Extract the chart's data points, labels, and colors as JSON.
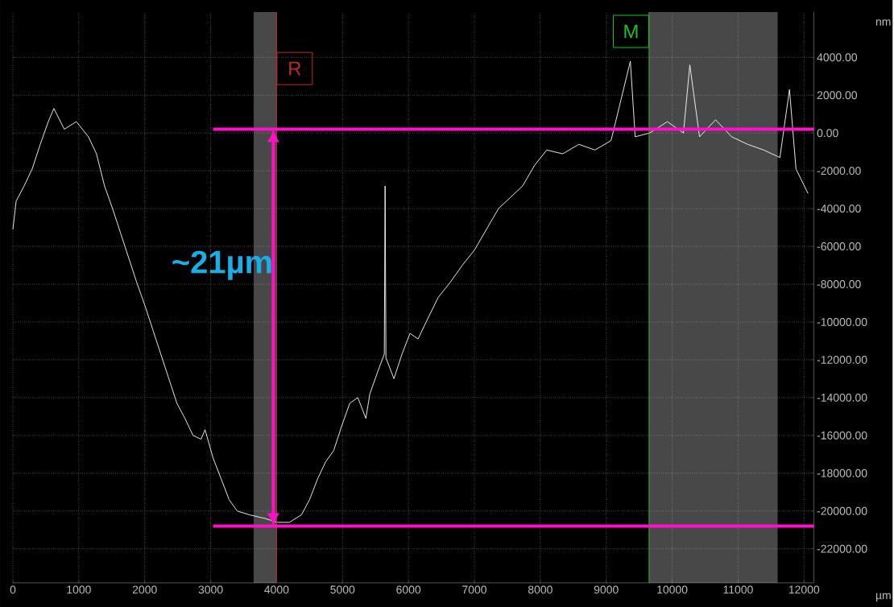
{
  "chart_data": {
    "type": "line",
    "xlabel": "µm",
    "ylabel": "nm",
    "xlim": [
      0,
      12150
    ],
    "ylim": [
      -23800,
      6400
    ],
    "xticks": [
      0,
      1000,
      2000,
      3000,
      4000,
      5000,
      6000,
      7000,
      8000,
      9000,
      10000,
      11000,
      12000
    ],
    "yticks": [
      {
        "value": -22000,
        "label": "-22000.00"
      },
      {
        "value": -20000,
        "label": "-20000.00"
      },
      {
        "value": -18000,
        "label": "-18000.00"
      },
      {
        "value": -16000,
        "label": "-16000.00"
      },
      {
        "value": -14000,
        "label": "-14000.00"
      },
      {
        "value": -12000,
        "label": "-12000.00"
      },
      {
        "value": -10000,
        "label": "-10000.00"
      },
      {
        "value": -8000,
        "label": "-8000.00"
      },
      {
        "value": -6000,
        "label": "-6000.00"
      },
      {
        "value": -4000,
        "label": "-4000.00"
      },
      {
        "value": -2000,
        "label": "-2000.00"
      },
      {
        "value": 0,
        "label": "0.00"
      },
      {
        "value": 2000,
        "label": "2000.00"
      },
      {
        "value": 4000,
        "label": "4000.00"
      }
    ],
    "grid": true,
    "x": [
      0,
      50,
      171,
      293,
      415,
      537,
      622,
      780,
      963,
      1146,
      1268,
      1390,
      1512,
      1634,
      1756,
      1878,
      2000,
      2122,
      2244,
      2366,
      2488,
      2610,
      2732,
      2854,
      2915,
      3037,
      3159,
      3280,
      3402,
      3585,
      3829,
      4012,
      4195,
      4378,
      4500,
      4622,
      4744,
      4866,
      4988,
      5110,
      5232,
      5354,
      5415,
      5537,
      5634,
      5646,
      5659,
      5780,
      5902,
      6024,
      6146,
      6268,
      6451,
      6634,
      6817,
      7000,
      7183,
      7366,
      7549,
      7732,
      7915,
      8098,
      8341,
      8585,
      8829,
      9073,
      9366,
      9439,
      9659,
      9927,
      10171,
      10268,
      10415,
      10659,
      10902,
      11146,
      11390,
      11634,
      11780,
      11878,
      12061
    ],
    "series": [
      {
        "color": "#ffffff",
        "values": [
          -5100,
          -3600,
          -2800,
          -1900,
          -600,
          600,
          1300,
          200,
          600,
          -200,
          -1100,
          -2800,
          -4000,
          -5300,
          -6600,
          -7900,
          -9100,
          -10400,
          -11700,
          -13000,
          -14300,
          -15100,
          -16000,
          -16200,
          -15700,
          -17200,
          -18300,
          -19400,
          -20000,
          -20200,
          -20400,
          -20600,
          -20600,
          -20200,
          -19400,
          -18300,
          -17400,
          -16800,
          -15500,
          -14300,
          -14000,
          -15100,
          -13800,
          -12600,
          -11700,
          -2800,
          -11900,
          -13000,
          -11700,
          -10600,
          -10900,
          -10000,
          -8700,
          -7900,
          -7000,
          -6200,
          -5100,
          -4000,
          -3400,
          -2800,
          -1700,
          -900,
          -1100,
          -600,
          -900,
          -400,
          3800,
          -200,
          0,
          600,
          0,
          3600,
          -200,
          700,
          -200,
          -600,
          -900,
          -1300,
          2300,
          -1900,
          -3200
        ]
      }
    ],
    "bands": [
      {
        "axis": "x",
        "from": 3650,
        "to": 4000,
        "color": "#484848"
      },
      {
        "axis": "x",
        "from": 9650,
        "to": 11600,
        "color": "#484848"
      }
    ],
    "ref_lines": [
      {
        "axis": "x",
        "value": 4000,
        "label": "R",
        "color": "#c0282a"
      },
      {
        "axis": "x",
        "value": 9650,
        "label": "M",
        "color": "#22c022"
      },
      {
        "axis": "y",
        "value": 200,
        "color": "#ff10c8"
      },
      {
        "axis": "y",
        "value": -20800,
        "color": "#ff10c8"
      }
    ],
    "annotations": [
      {
        "text": "~21µm",
        "x": 3950,
        "y": -7000
      }
    ]
  }
}
